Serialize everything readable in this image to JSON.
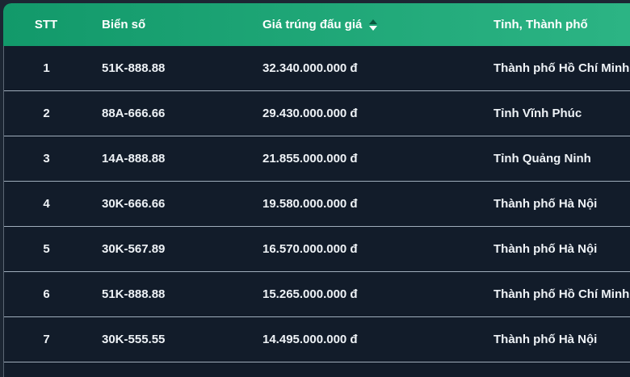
{
  "table": {
    "columns": [
      {
        "key": "stt",
        "label": "STT",
        "sortable": false
      },
      {
        "key": "bien_so",
        "label": "Biển số",
        "sortable": false
      },
      {
        "key": "gia",
        "label": "Giá trúng đấu giá",
        "sortable": true,
        "sort_direction": "desc"
      },
      {
        "key": "tinh",
        "label": "Tỉnh, Thành phố",
        "sortable": false
      }
    ],
    "rows": [
      {
        "stt": "1",
        "bien_so": "51K-888.88",
        "gia": "32.340.000.000 đ",
        "tinh": "Thành phố Hồ Chí Minh"
      },
      {
        "stt": "2",
        "bien_so": "88A-666.66",
        "gia": "29.430.000.000 đ",
        "tinh": "Tỉnh Vĩnh Phúc"
      },
      {
        "stt": "3",
        "bien_so": "14A-888.88",
        "gia": "21.855.000.000 đ",
        "tinh": "Tỉnh Quảng Ninh"
      },
      {
        "stt": "4",
        "bien_so": "30K-666.66",
        "gia": "19.580.000.000 đ",
        "tinh": "Thành phố Hà Nội"
      },
      {
        "stt": "5",
        "bien_so": "30K-567.89",
        "gia": "16.570.000.000 đ",
        "tinh": "Thành phố Hà Nội"
      },
      {
        "stt": "6",
        "bien_so": "51K-888.88",
        "gia": "15.265.000.000 đ",
        "tinh": "Thành phố Hồ Chí Minh"
      },
      {
        "stt": "7",
        "bien_so": "30K-555.55",
        "gia": "14.495.000.000 đ",
        "tinh": "Thành phố Hà Nội"
      }
    ]
  },
  "icons": {
    "sort": "sort-up-down-arrows"
  },
  "colors": {
    "header_gradient_start": "#12996a",
    "header_gradient_end": "#2cb484",
    "header_text": "#ffffff",
    "row_background": "#121c2a",
    "row_text": "#eef2f6",
    "separator": "#9fadbb",
    "page_background": "#1c2633",
    "sort_arrow_inactive": "#0b5a41",
    "sort_arrow_active": "#ffffff"
  }
}
